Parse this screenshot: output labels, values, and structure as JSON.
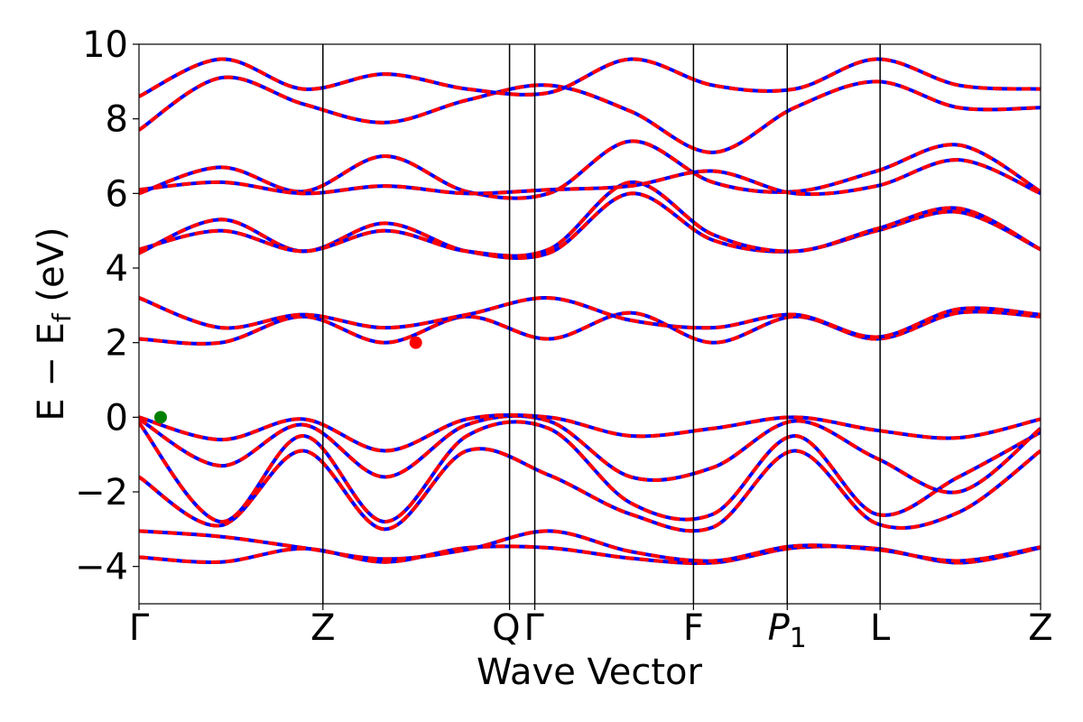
{
  "chart_data": {
    "type": "line",
    "xlabel": "Wave Vector",
    "ylabel": "E − E_f (eV)",
    "ylabel_main": "E  −  E",
    "ylabel_sub": "f",
    "ylabel_tail": " (eV)",
    "ylim": [
      -5,
      10
    ],
    "yticks": [
      -4,
      -2,
      0,
      2,
      4,
      6,
      8,
      10
    ],
    "ytick_labels": [
      "−4",
      "−2",
      "0",
      "2",
      "4",
      "6",
      "8",
      "10"
    ],
    "xlim": [
      0,
      1
    ],
    "kpoints": [
      {
        "label": "Γ",
        "x": 0.0
      },
      {
        "label": "Z",
        "x": 0.204
      },
      {
        "label": "Q",
        "x": 0.411
      },
      {
        "label": "Γ",
        "x": 0.439
      },
      {
        "label": "F",
        "x": 0.615
      },
      {
        "label": "P",
        "sub": "1",
        "x": 0.719
      },
      {
        "label": "L",
        "x": 0.822
      },
      {
        "label": "Z",
        "x": 1.0
      }
    ],
    "series_colors": {
      "primary": "#ff0000",
      "secondary": "#0000ff"
    },
    "markers": [
      {
        "name": "vbm",
        "x": 0.024,
        "y": 0.0,
        "color": "#008000"
      },
      {
        "name": "cbm",
        "x": 0.307,
        "y": 2.0,
        "color": "#ff0000"
      }
    ],
    "bands": [
      {
        "y": [
          -3.75,
          -3.88,
          -3.52,
          -3.88,
          -3.5,
          -3.5,
          -3.78,
          -3.9,
          -3.5,
          -3.52,
          -3.9,
          -3.5
        ]
      },
      {
        "y": [
          -3.05,
          -3.2,
          -3.5,
          -3.8,
          -3.55,
          -3.05,
          -3.6,
          -3.85,
          -3.45,
          -3.55,
          -3.85,
          -3.48
        ]
      },
      {
        "y": [
          -1.6,
          -2.9,
          -0.9,
          -3.0,
          -0.9,
          -1.55,
          -2.6,
          -2.95,
          -0.9,
          -2.85,
          -2.55,
          -0.9
        ]
      },
      {
        "y": [
          -0.15,
          -2.8,
          -0.5,
          -2.8,
          -0.5,
          -0.3,
          -2.3,
          -2.6,
          -0.5,
          -2.6,
          -1.6,
          -0.4
        ]
      },
      {
        "y": [
          -0.05,
          -1.3,
          -0.2,
          -1.6,
          -0.2,
          -0.1,
          -1.6,
          -1.35,
          -0.1,
          -1.1,
          -2.0,
          -0.3
        ]
      },
      {
        "y": [
          0.0,
          -0.6,
          -0.05,
          -0.9,
          -0.05,
          0.0,
          -0.5,
          -0.3,
          0.0,
          -0.35,
          -0.55,
          -0.05
        ]
      },
      {
        "y": [
          2.1,
          2.0,
          2.7,
          2.0,
          2.7,
          2.1,
          2.8,
          2.0,
          2.7,
          2.1,
          2.8,
          2.7
        ]
      },
      {
        "y": [
          3.2,
          2.4,
          2.75,
          2.4,
          2.75,
          3.2,
          2.6,
          2.4,
          2.75,
          2.15,
          2.9,
          2.75
        ]
      },
      {
        "y": [
          4.4,
          5.3,
          4.45,
          5.2,
          4.45,
          4.4,
          6.0,
          4.75,
          4.45,
          5.0,
          5.5,
          4.5
        ]
      },
      {
        "y": [
          4.5,
          5.0,
          4.45,
          5.0,
          4.45,
          4.5,
          6.3,
          4.9,
          4.45,
          5.05,
          5.6,
          4.5
        ]
      },
      {
        "y": [
          6.0,
          6.7,
          6.05,
          7.0,
          6.05,
          6.0,
          7.4,
          6.3,
          6.05,
          6.6,
          7.3,
          6.05
        ]
      },
      {
        "y": [
          6.1,
          6.3,
          6.0,
          6.2,
          6.0,
          6.1,
          6.2,
          6.6,
          6.0,
          6.2,
          6.9,
          6.0
        ]
      },
      {
        "y": [
          7.7,
          9.1,
          8.4,
          7.9,
          8.5,
          8.9,
          8.2,
          7.1,
          8.3,
          9.0,
          8.3,
          8.3
        ]
      },
      {
        "y": [
          8.6,
          9.6,
          8.8,
          9.2,
          8.8,
          8.7,
          9.6,
          8.9,
          8.8,
          9.6,
          8.9,
          8.8
        ]
      }
    ]
  }
}
